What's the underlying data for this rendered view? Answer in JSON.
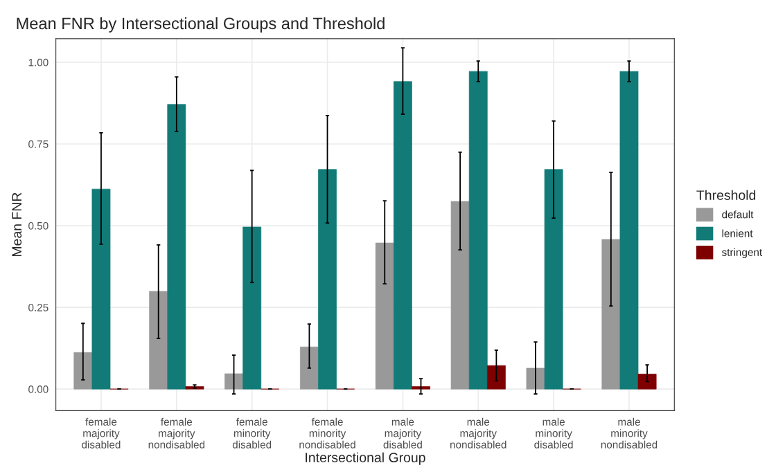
{
  "chart_data": {
    "type": "bar",
    "title": "Mean FNR by Intersectional Groups and Threshold",
    "xlabel": "Intersectional Group",
    "ylabel": "Mean FNR",
    "legend_title": "Threshold",
    "categories": [
      "female\nmajority\ndisabled",
      "female\nmajority\nnondisabled",
      "female\nminority\ndisabled",
      "female\nminority\nnondisabled",
      "male\nmajority\ndisabled",
      "male\nmajority\nnondisabled",
      "male\nminority\ndisabled",
      "male\nminority\nnondisabled"
    ],
    "series": [
      {
        "name": "default",
        "color": "#999999",
        "values": [
          0.112,
          0.299,
          0.047,
          0.129,
          0.447,
          0.574,
          0.064,
          0.458
        ],
        "errors": [
          [
            0.028,
            0.201
          ],
          [
            0.155,
            0.441
          ],
          [
            -0.015,
            0.104
          ],
          [
            0.064,
            0.199
          ],
          [
            0.322,
            0.576
          ],
          [
            0.426,
            0.725
          ],
          [
            -0.015,
            0.144
          ],
          [
            0.254,
            0.663
          ]
        ]
      },
      {
        "name": "lenient",
        "color": "#127b78",
        "values": [
          0.612,
          0.871,
          0.496,
          0.672,
          0.941,
          0.972,
          0.672,
          0.972
        ],
        "errors": [
          [
            0.443,
            0.784
          ],
          [
            0.788,
            0.955
          ],
          [
            0.326,
            0.669
          ],
          [
            0.508,
            0.837
          ],
          [
            0.841,
            1.044
          ],
          [
            0.941,
            1.004
          ],
          [
            0.523,
            0.82
          ],
          [
            0.941,
            1.004
          ]
        ]
      },
      {
        "name": "stringent",
        "color": "#7f0000",
        "values": [
          0,
          0.008,
          0,
          0,
          0.008,
          0.072,
          0,
          0.046
        ],
        "errors": [
          [
            0,
            0
          ],
          [
            0.003,
            0.013
          ],
          [
            0,
            0
          ],
          [
            0,
            0
          ],
          [
            -0.015,
            0.032
          ],
          [
            0.025,
            0.119
          ],
          [
            0,
            0
          ],
          [
            0.023,
            0.074
          ]
        ]
      }
    ],
    "ylim": [
      -0.066,
      1.072
    ],
    "yticks": [
      {
        "value": 0,
        "label": "0.00"
      },
      {
        "value": 0.25,
        "label": "0.25"
      },
      {
        "value": 0.5,
        "label": "0.50"
      },
      {
        "value": 0.75,
        "label": "0.75"
      },
      {
        "value": 1,
        "label": "1.00"
      }
    ],
    "grid": true,
    "legend": "right"
  }
}
